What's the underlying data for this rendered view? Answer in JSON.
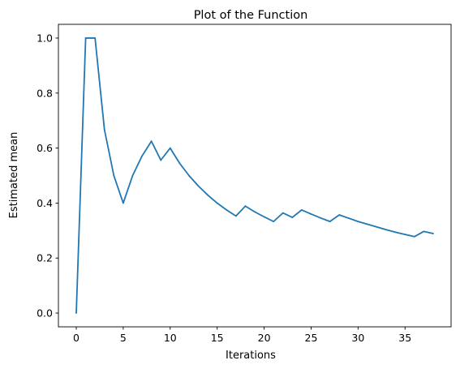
{
  "chart_data": {
    "type": "line",
    "title": "Plot of the Function",
    "xlabel": "Iterations",
    "ylabel": "Estimated mean",
    "xlim": [
      -1.9,
      39.9
    ],
    "ylim": [
      -0.05,
      1.05
    ],
    "xticks": [
      0,
      5,
      10,
      15,
      20,
      25,
      30,
      35
    ],
    "yticks": [
      0.0,
      0.2,
      0.4,
      0.6,
      0.8,
      1.0
    ],
    "ytick_labels": [
      "0.0",
      "0.2",
      "0.4",
      "0.6",
      "0.8",
      "1.0"
    ],
    "grid": false,
    "legend": "none",
    "series": [
      {
        "color": "#1f77b4",
        "x": [
          0,
          1,
          2,
          3,
          4,
          5,
          6,
          7,
          8,
          9,
          10,
          11,
          12,
          13,
          14,
          15,
          16,
          17,
          18,
          19,
          20,
          21,
          22,
          23,
          24,
          25,
          26,
          27,
          28,
          29,
          30,
          31,
          32,
          33,
          34,
          35,
          36,
          37,
          38
        ],
        "y": [
          0.0,
          1.0,
          1.0,
          0.667,
          0.5,
          0.4,
          0.5,
          0.571,
          0.625,
          0.556,
          0.6,
          0.545,
          0.5,
          0.462,
          0.429,
          0.4,
          0.375,
          0.353,
          0.389,
          0.368,
          0.35,
          0.333,
          0.364,
          0.348,
          0.375,
          0.36,
          0.346,
          0.333,
          0.357,
          0.345,
          0.333,
          0.323,
          0.313,
          0.303,
          0.294,
          0.286,
          0.278,
          0.297,
          0.289
        ]
      }
    ]
  }
}
